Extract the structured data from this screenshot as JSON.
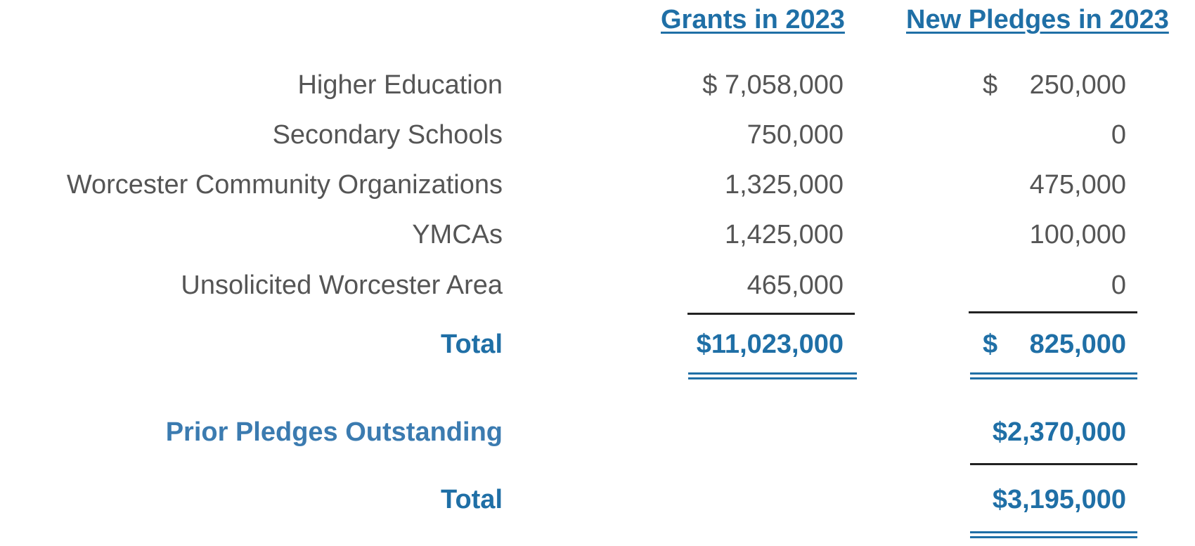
{
  "headers": {
    "grants": "Grants in 2023",
    "pledges": "New Pledges in 2023"
  },
  "currency_symbol": "$",
  "rows": [
    {
      "label": "Higher Education",
      "grants": "$ 7,058,000",
      "pledges": "250,000"
    },
    {
      "label": "Secondary Schools",
      "grants": "750,000",
      "pledges": "0"
    },
    {
      "label": "Worcester Community Organizations",
      "grants": "1,325,000",
      "pledges": "475,000"
    },
    {
      "label": "YMCAs",
      "grants": "1,425,000",
      "pledges": "100,000"
    },
    {
      "label": "Unsolicited Worcester Area",
      "grants": "465,000",
      "pledges": "0"
    }
  ],
  "total": {
    "label": "Total",
    "grants": "$11,023,000",
    "pledges": "825,000"
  },
  "prior": {
    "label": "Prior Pledges Outstanding",
    "pledges": "$2,370,000"
  },
  "grand_total": {
    "label": "Total",
    "pledges": "$3,195,000"
  },
  "colors": {
    "accent": "#1f6fa6",
    "text": "#555555",
    "rule": "#222222"
  }
}
